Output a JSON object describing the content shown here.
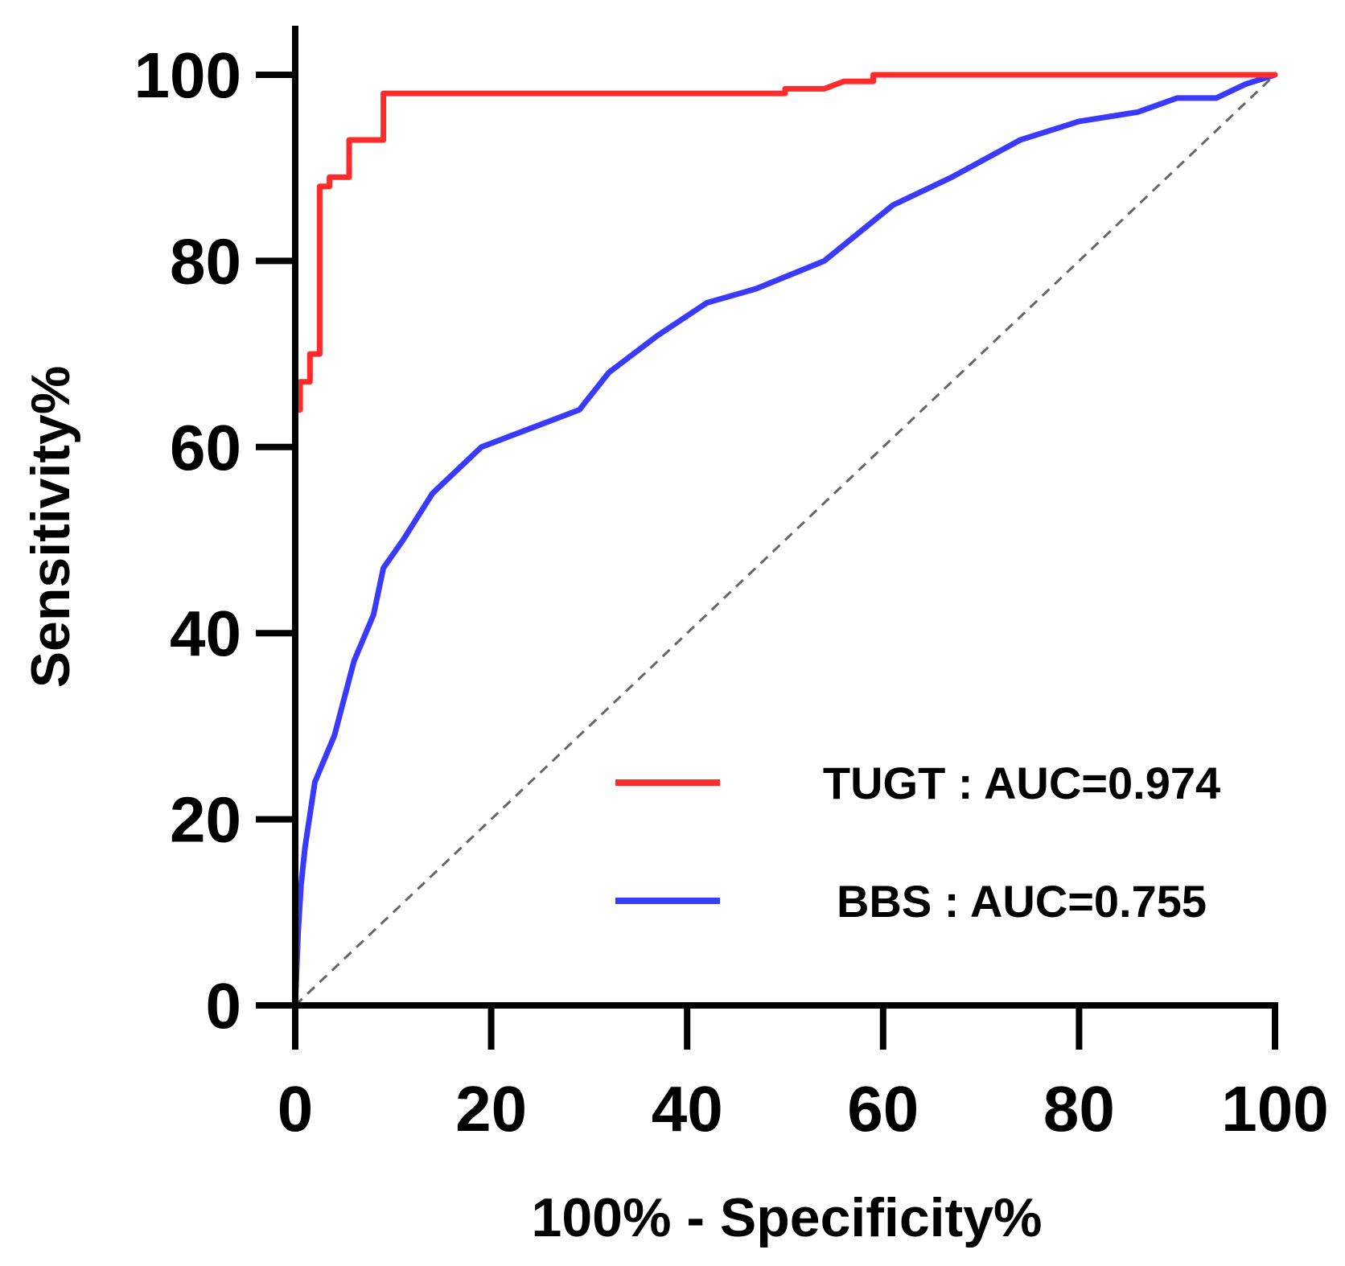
{
  "chart_data": {
    "type": "line",
    "title": "",
    "xlabel": "100% - Specificity%",
    "ylabel": "Sensitivity%",
    "xlim": [
      0,
      100
    ],
    "ylim": [
      0,
      100
    ],
    "xticks": [
      0,
      20,
      40,
      60,
      80,
      100
    ],
    "yticks": [
      0,
      20,
      40,
      60,
      80,
      100
    ],
    "grid": false,
    "legend_position": "bottom-right",
    "reference_line": {
      "name": "chance",
      "x": [
        0,
        100
      ],
      "y": [
        0,
        100
      ],
      "style": "dashed",
      "color": "#666666"
    },
    "series": [
      {
        "name": "TUGT",
        "legend_label": "TUGT : AUC=0.974",
        "auc": 0.974,
        "color": "#ff2a2a",
        "step": true,
        "x": [
          0,
          0,
          0.5,
          0.5,
          1.5,
          1.5,
          2.5,
          2.5,
          3.5,
          3.5,
          5.5,
          5.5,
          6.5,
          6.5,
          9,
          9,
          50,
          50,
          54,
          56,
          59,
          59,
          100
        ],
        "y": [
          0,
          64,
          64,
          67,
          67,
          70,
          70,
          88,
          88,
          89,
          89,
          93,
          93,
          93,
          93,
          98,
          98,
          98.5,
          98.5,
          99.3,
          99.3,
          100,
          100
        ]
      },
      {
        "name": "BBS",
        "legend_label": "BBS : AUC=0.755",
        "auc": 0.755,
        "color": "#3a3aff",
        "step": false,
        "x": [
          0,
          0.3,
          0.6,
          1,
          2,
          4,
          6,
          8,
          9,
          11,
          14,
          19,
          24,
          29,
          32,
          37,
          42,
          47,
          54,
          61,
          67,
          74,
          80,
          86,
          90,
          94,
          97,
          100
        ],
        "y": [
          0,
          8,
          13,
          17,
          24,
          29,
          37,
          42,
          47,
          50,
          55,
          60,
          62,
          64,
          68,
          72,
          75.5,
          77,
          80,
          86,
          89,
          93,
          95,
          96,
          97.5,
          97.5,
          99,
          100
        ]
      }
    ]
  }
}
